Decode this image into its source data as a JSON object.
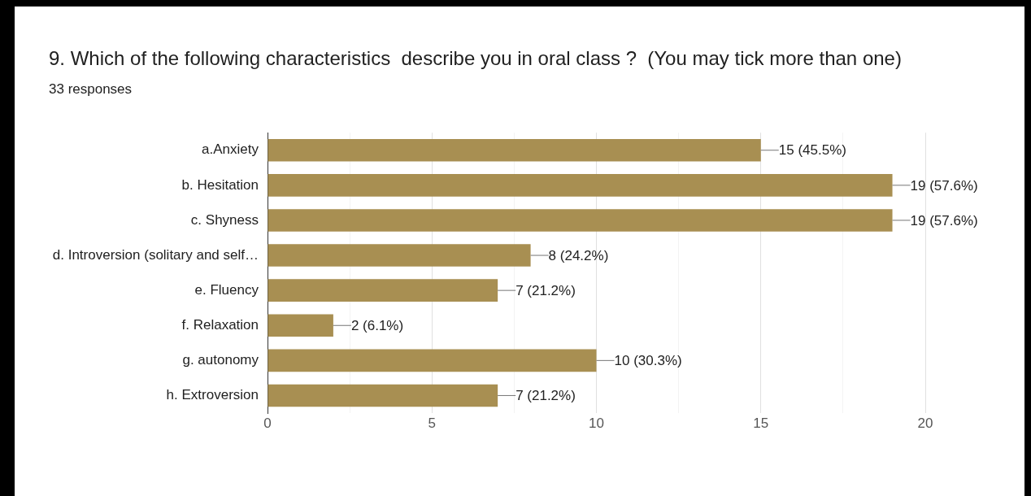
{
  "chart_data": {
    "type": "bar",
    "orientation": "horizontal",
    "title": "9. Which of the following characteristics  describe you in oral class ?  (You may tick more than one)",
    "subtitle": "33 responses",
    "categories": [
      "a.Anxiety",
      "b. Hesitation",
      "c. Shyness",
      "d. Introversion (solitary and self…",
      "e. Fluency",
      "f. Relaxation",
      "g. autonomy",
      "h. Extroversion"
    ],
    "values": [
      15,
      19,
      19,
      8,
      7,
      2,
      10,
      7
    ],
    "value_labels": [
      "15 (45.5%)",
      "19 (57.6%)",
      "19 (57.6%)",
      "8 (24.2%)",
      "7 (21.2%)",
      "2 (6.1%)",
      "10 (30.3%)",
      "7 (21.2%)"
    ],
    "color": "#a88f52",
    "xlim": [
      0,
      20
    ],
    "xticks": [
      0,
      {
        "value": 2.5,
        "label": null
      },
      5,
      {
        "value": 7.5,
        "label": null
      },
      10,
      {
        "value": 12.5,
        "label": null
      },
      15,
      {
        "value": 17.5,
        "label": null
      },
      20
    ],
    "grid": "x"
  }
}
